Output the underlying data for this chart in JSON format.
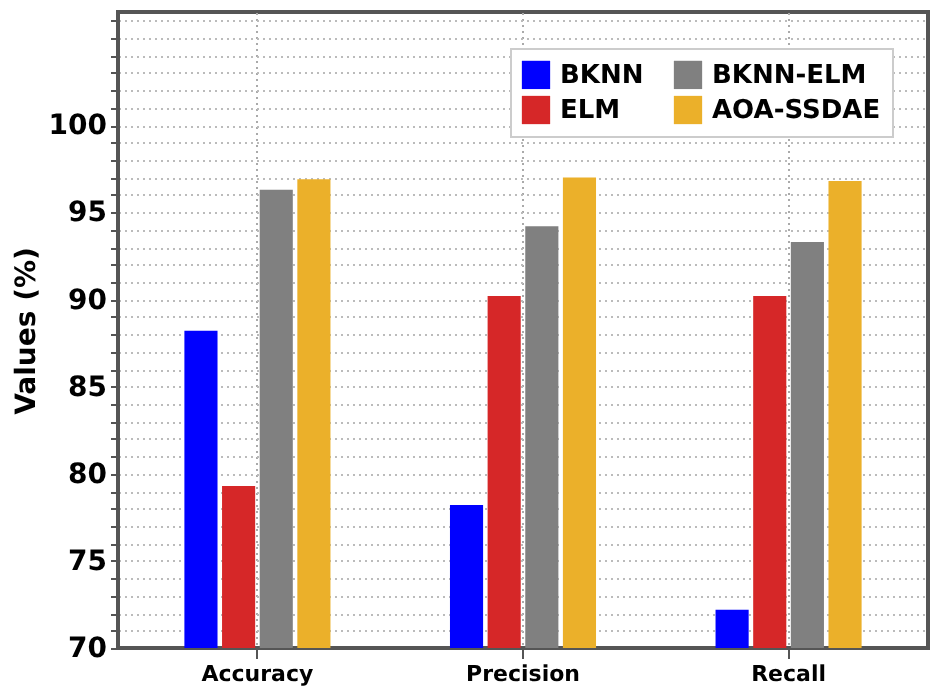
{
  "chart_data": {
    "type": "bar",
    "ylabel": "Values (%)",
    "categories": [
      "Accuracy",
      "Precision",
      "Recall"
    ],
    "series": [
      {
        "name": "BKNN",
        "color": "#0000ff",
        "values": [
          88.2,
          78.2,
          72.2
        ]
      },
      {
        "name": "ELM",
        "color": "#d62728",
        "values": [
          79.3,
          90.2,
          90.2
        ]
      },
      {
        "name": "BKNN-ELM",
        "color": "#808080",
        "values": [
          96.3,
          94.2,
          93.3
        ]
      },
      {
        "name": "AOA-SSDAE",
        "color": "#ebb02a",
        "values": [
          96.9,
          97.0,
          96.8
        ]
      }
    ],
    "ylim": [
      70,
      106.5
    ],
    "yticks": [
      70,
      {
        "value": 71,
        "label": null
      },
      {
        "value": 72,
        "label": null
      },
      {
        "value": 73,
        "label": null
      },
      {
        "value": 74,
        "label": null
      },
      75,
      {
        "value": 76,
        "label": null
      },
      {
        "value": 77,
        "label": null
      },
      {
        "value": 78,
        "label": null
      },
      {
        "value": 79,
        "label": null
      },
      80,
      {
        "value": 81,
        "label": null
      },
      {
        "value": 82,
        "label": null
      },
      {
        "value": 83,
        "label": null
      },
      {
        "value": 84,
        "label": null
      },
      85,
      {
        "value": 86,
        "label": null
      },
      {
        "value": 87,
        "label": null
      },
      {
        "value": 88,
        "label": null
      },
      {
        "value": 89,
        "label": null
      },
      90,
      {
        "value": 91,
        "label": null
      },
      {
        "value": 92,
        "label": null
      },
      {
        "value": 93,
        "label": null
      },
      {
        "value": 94,
        "label": null
      },
      95,
      {
        "value": 96,
        "label": null
      },
      {
        "value": 97,
        "label": null
      },
      {
        "value": 98,
        "label": null
      },
      {
        "value": 99,
        "label": null
      },
      100,
      {
        "value": 101,
        "label": null
      },
      {
        "value": 102,
        "label": null
      },
      {
        "value": 103,
        "label": null
      },
      {
        "value": 104,
        "label": null
      },
      {
        "value": 105,
        "label": null
      },
      {
        "value": 106,
        "label": null
      }
    ],
    "grid": true,
    "legend": "top right"
  }
}
